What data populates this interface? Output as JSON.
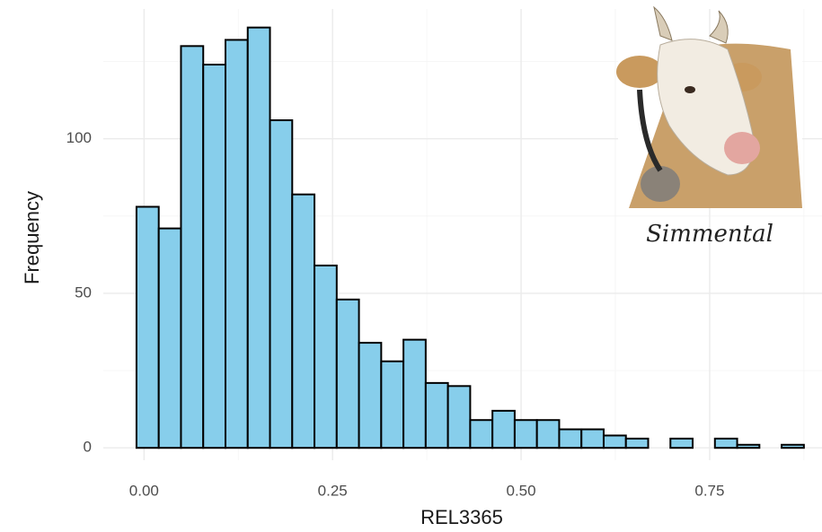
{
  "chart_data": {
    "type": "histogram",
    "x_label": "REL3365",
    "y_label": "Frequency",
    "annotation": "Simmental",
    "bins": [
      -0.01,
      0.0195,
      0.049,
      0.0785,
      0.108,
      0.1375,
      0.167,
      0.1965,
      0.226,
      0.2555,
      0.285,
      0.3145,
      0.344,
      0.3735,
      0.403,
      0.4325,
      0.462,
      0.4915,
      0.521,
      0.5505,
      0.58,
      0.6095,
      0.639,
      0.6685,
      0.698,
      0.7275,
      0.757,
      0.7865,
      0.816,
      0.8455,
      0.875
    ],
    "values": [
      78,
      71,
      130,
      124,
      132,
      136,
      106,
      82,
      59,
      48,
      34,
      28,
      35,
      21,
      20,
      9,
      12,
      9,
      9,
      6,
      6,
      4,
      3,
      0,
      3,
      0,
      3,
      1,
      0,
      1
    ],
    "color": "#87ceeb",
    "edge_color": "#000000",
    "xlim": [
      -0.054,
      0.899
    ],
    "ylim": [
      -4,
      142
    ],
    "xticks": [
      {
        "value": 0,
        "label": "0.00"
      },
      {
        "value": 0.25,
        "label": "0.25"
      },
      {
        "value": 0.5,
        "label": "0.50"
      },
      {
        "value": 0.75,
        "label": "0.75"
      }
    ],
    "yticks": [
      0,
      50,
      100
    ],
    "grid": true,
    "minor_grid": true
  }
}
